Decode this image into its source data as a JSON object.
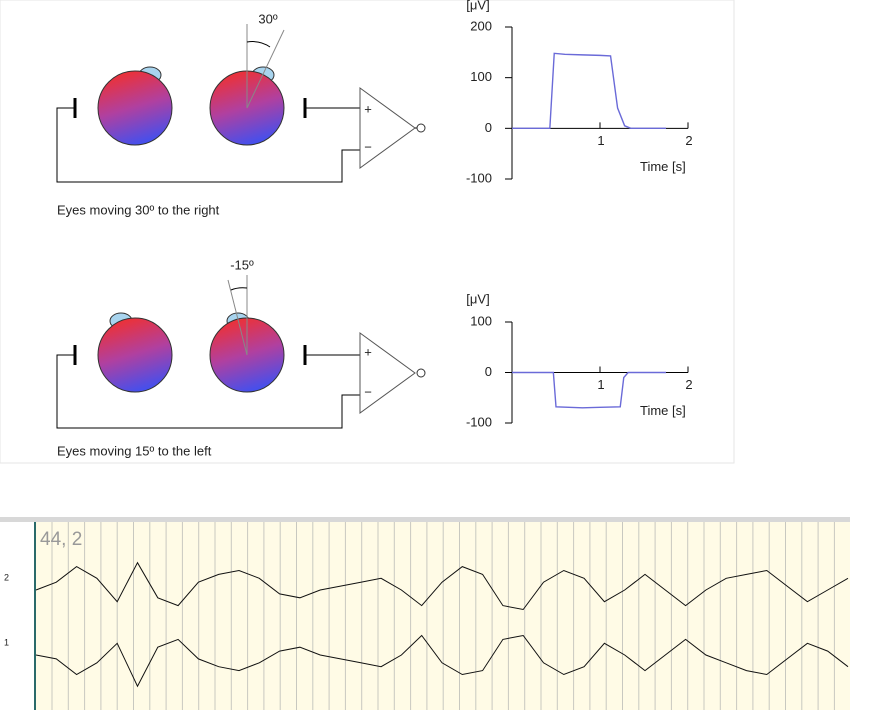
{
  "panels": [
    {
      "angle_label": "30º",
      "caption": "Eyes moving 30º to the right",
      "amp_plus": "+",
      "amp_minus": "−",
      "chart_data": {
        "type": "line",
        "ylabel": "[μV]",
        "xlabel": "Time [s]",
        "xlim": [
          0,
          2
        ],
        "ylim": [
          -100,
          200
        ],
        "yticks": [
          200,
          100,
          0,
          -100
        ],
        "xticks": [
          1,
          2
        ],
        "x": [
          0,
          0.43,
          0.48,
          0.6,
          0.8,
          1.0,
          1.12,
          1.2,
          1.28,
          1.35,
          1.75
        ],
        "values": [
          0,
          0,
          148,
          146,
          145,
          144,
          143,
          40,
          5,
          0,
          0
        ],
        "color": "#6a6ad8"
      }
    },
    {
      "angle_label": "-15º",
      "caption": "Eyes moving 15º to the left",
      "amp_plus": "+",
      "amp_minus": "−",
      "chart_data": {
        "type": "line",
        "ylabel": "[μV]",
        "xlabel": "Time [s]",
        "xlim": [
          0,
          2
        ],
        "ylim": [
          -100,
          100
        ],
        "yticks": [
          100,
          0,
          -100
        ],
        "xticks": [
          1,
          2
        ],
        "x": [
          0,
          0.47,
          0.5,
          0.8,
          1.0,
          1.23,
          1.27,
          1.32,
          1.75
        ],
        "values": [
          0,
          0,
          -68,
          -70,
          -69,
          -68,
          -10,
          0,
          0
        ],
        "color": "#6a6ad8"
      }
    }
  ],
  "recording": {
    "label": "44, 2",
    "ylim": [
      -50,
      50
    ],
    "channels": [
      {
        "name": "2",
        "values": [
          0,
          10,
          30,
          15,
          -15,
          35,
          -10,
          -20,
          10,
          20,
          25,
          15,
          -5,
          -10,
          0,
          5,
          10,
          15,
          0,
          -20,
          10,
          30,
          20,
          -20,
          -25,
          10,
          25,
          15,
          -15,
          0,
          20,
          0,
          -20,
          0,
          15,
          20,
          25,
          5,
          -15,
          0,
          15
        ]
      },
      {
        "name": "1",
        "values": [
          0,
          -5,
          -25,
          -10,
          15,
          -40,
          10,
          20,
          -5,
          -15,
          -20,
          -10,
          5,
          10,
          0,
          -5,
          -10,
          -15,
          0,
          25,
          -10,
          -25,
          -20,
          20,
          25,
          -10,
          -25,
          -15,
          15,
          0,
          -20,
          0,
          20,
          0,
          -10,
          -20,
          -25,
          -5,
          15,
          5,
          -15
        ]
      }
    ]
  }
}
